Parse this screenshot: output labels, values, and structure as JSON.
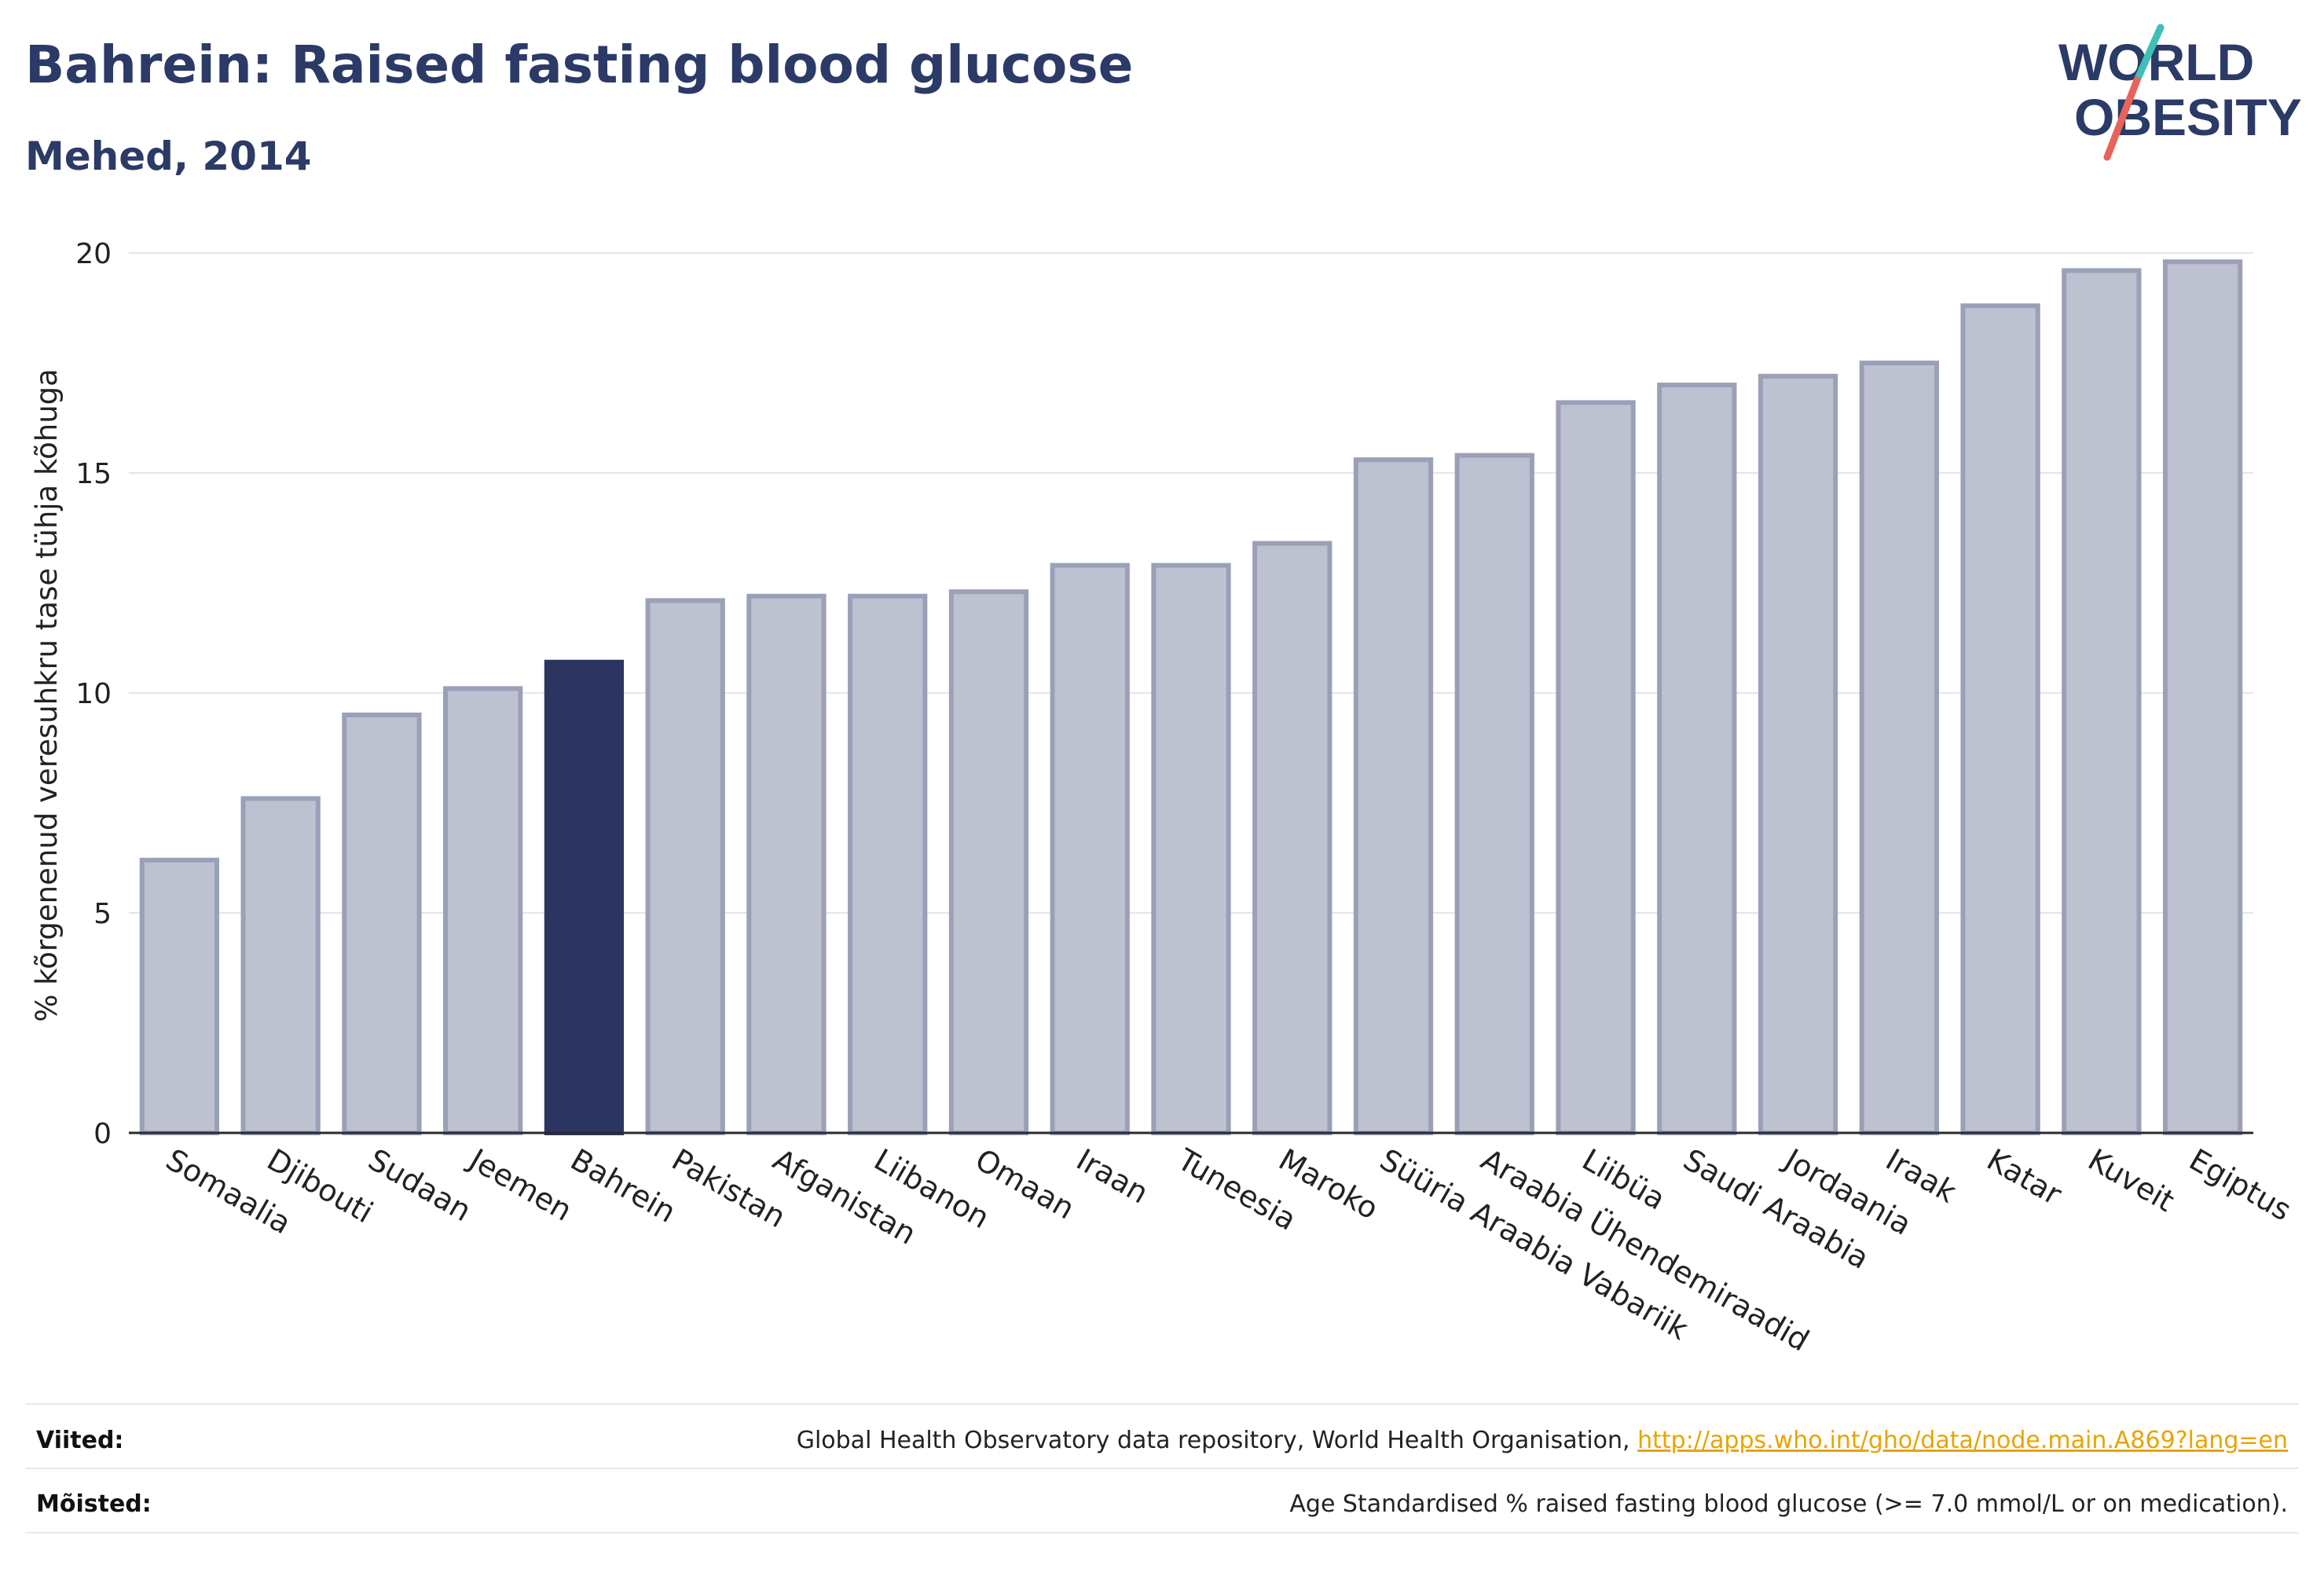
{
  "header": {
    "title": "Bahrein: Raised fasting blood glucose",
    "subtitle": "Mehed, 2014"
  },
  "logo": {
    "line1": "WORLD",
    "line2": "OBESITY",
    "colors": {
      "text": "#2b3a67",
      "slash_top": "#3fbfb8",
      "slash_bottom": "#e8645a"
    }
  },
  "colors": {
    "bar": "#bec2d0",
    "bar_border": "#9aa0b8",
    "highlight": "#2b3560",
    "grid": "#e3e5ec",
    "axis": "#2a2a2a"
  },
  "chart_data": {
    "type": "bar",
    "ylabel": "% kõrgenenud veresuhkru tase tühja kõhuga",
    "ylim": [
      0,
      20
    ],
    "yticks": [
      0,
      5,
      10,
      15,
      20
    ],
    "grid": true,
    "highlight": "Bahrein",
    "categories": [
      "Somaalia",
      "Djibouti",
      "Sudaan",
      "Jeemen",
      "Bahrein",
      "Pakistan",
      "Afganistan",
      "Liibanon",
      "Omaan",
      "Iraan",
      "Tuneesia",
      "Maroko",
      "Süüria Araabia Vabariik",
      "Araabia Ühendemiraadid",
      "Liibüa",
      "Saudi Araabia",
      "Jordaania",
      "Iraak",
      "Katar",
      "Kuveit",
      "Egiptus"
    ],
    "values": [
      6.2,
      7.6,
      9.5,
      10.1,
      10.7,
      12.1,
      12.2,
      12.2,
      12.3,
      12.9,
      12.9,
      13.4,
      15.3,
      15.4,
      16.6,
      17.0,
      17.2,
      17.5,
      18.8,
      19.6,
      19.8
    ]
  },
  "footer": {
    "sources_label": "Viited:",
    "sources_text": "Global Health Observatory data repository, World Health Organisation,",
    "sources_link": "http://apps.who.int/gho/data/node.main.A869?lang=en",
    "definitions_label": "Mõisted:",
    "definitions_text": "Age Standardised % raised fasting blood glucose (>= 7.0 mmol/L or on medication)."
  }
}
